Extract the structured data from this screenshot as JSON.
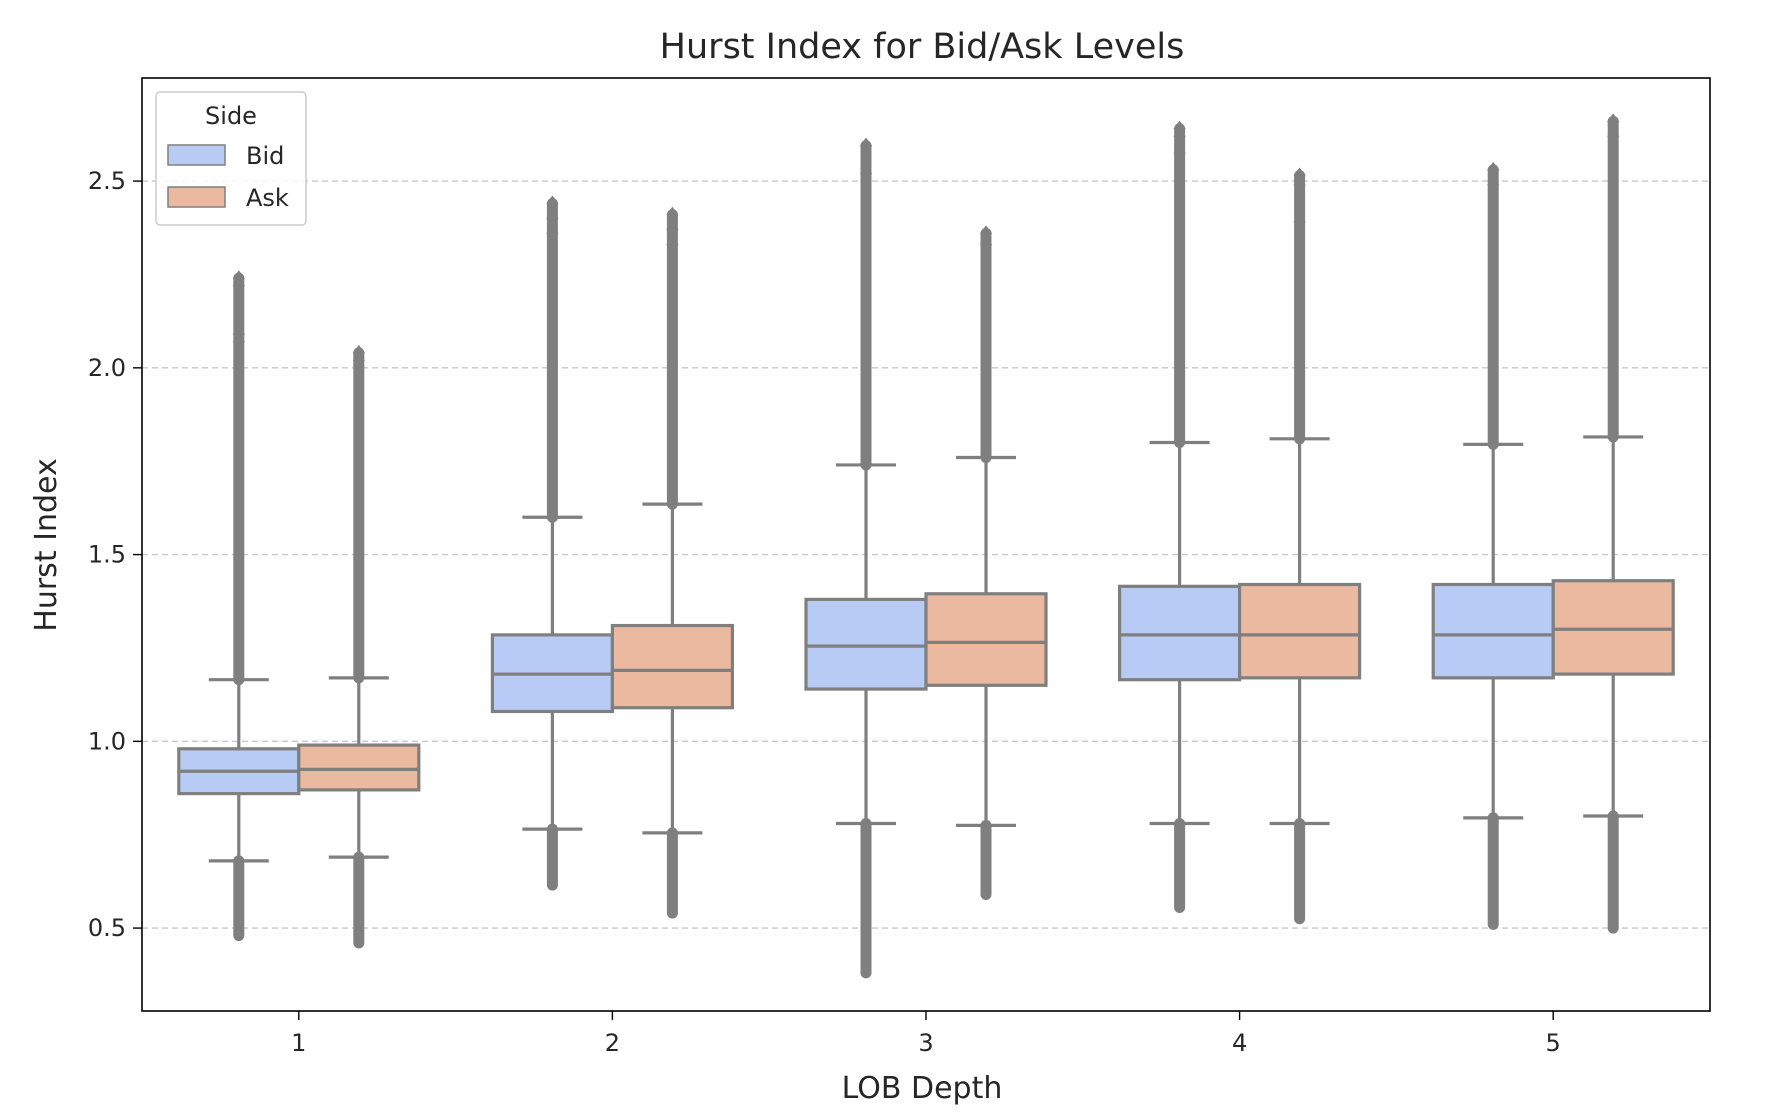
{
  "chart_data": {
    "type": "box",
    "title": "Hurst Index for Bid/Ask Levels",
    "xlabel": "LOB Depth",
    "ylabel": "Hurst Index",
    "categories": [
      "1",
      "2",
      "3",
      "4",
      "5"
    ],
    "ylim": [
      0.278,
      2.776
    ],
    "yticks": [
      0.5,
      1.0,
      1.5,
      2.0,
      2.5
    ],
    "ytick_labels": [
      "0.5",
      "1.0",
      "1.5",
      "2.0",
      "2.5"
    ],
    "grid": "horizontal dashed",
    "legend": {
      "title": "Side",
      "placement": "top-left",
      "entries": [
        "Bid",
        "Ask"
      ]
    },
    "series": [
      {
        "name": "Bid",
        "color": "#b8cbf4",
        "boxes": [
          {
            "category": "1",
            "whisker_low": 0.68,
            "q1": 0.86,
            "median": 0.92,
            "q3": 0.98,
            "whisker_high": 1.165,
            "outlier_low": 0.48,
            "outlier_high": 2.24,
            "outlier_points": [
              2.24,
              2.22,
              2.09,
              2.07
            ]
          },
          {
            "category": "2",
            "whisker_low": 0.765,
            "q1": 1.08,
            "median": 1.18,
            "q3": 1.285,
            "whisker_high": 1.6,
            "outlier_low": 0.615,
            "outlier_high": 2.44,
            "outlier_points": [
              2.44,
              2.4,
              2.36
            ]
          },
          {
            "category": "3",
            "whisker_low": 0.78,
            "q1": 1.14,
            "median": 1.255,
            "q3": 1.38,
            "whisker_high": 1.74,
            "outlier_low": 0.38,
            "outlier_high": 2.595,
            "outlier_points": [
              2.595,
              2.52
            ]
          },
          {
            "category": "4",
            "whisker_low": 0.78,
            "q1": 1.165,
            "median": 1.285,
            "q3": 1.415,
            "whisker_high": 1.8,
            "outlier_low": 0.555,
            "outlier_high": 2.64,
            "outlier_points": [
              2.64,
              2.62,
              2.575
            ]
          },
          {
            "category": "5",
            "whisker_low": 0.795,
            "q1": 1.17,
            "median": 1.285,
            "q3": 1.42,
            "whisker_high": 1.795,
            "outlier_low": 0.51,
            "outlier_high": 2.53,
            "outlier_points": [
              2.53,
              2.49
            ]
          }
        ]
      },
      {
        "name": "Ask",
        "color": "#eab9a0",
        "boxes": [
          {
            "category": "1",
            "whisker_low": 0.69,
            "q1": 0.87,
            "median": 0.925,
            "q3": 0.99,
            "whisker_high": 1.17,
            "outlier_low": 0.46,
            "outlier_high": 2.04,
            "outlier_points": [
              2.04,
              2.02
            ]
          },
          {
            "category": "2",
            "whisker_low": 0.755,
            "q1": 1.09,
            "median": 1.19,
            "q3": 1.31,
            "whisker_high": 1.635,
            "outlier_low": 0.54,
            "outlier_high": 2.41,
            "outlier_points": [
              2.41,
              2.37,
              2.33
            ]
          },
          {
            "category": "3",
            "whisker_low": 0.775,
            "q1": 1.15,
            "median": 1.265,
            "q3": 1.395,
            "whisker_high": 1.76,
            "outlier_low": 0.59,
            "outlier_high": 2.36,
            "outlier_points": [
              2.36,
              2.33
            ]
          },
          {
            "category": "4",
            "whisker_low": 0.78,
            "q1": 1.17,
            "median": 1.285,
            "q3": 1.42,
            "whisker_high": 1.81,
            "outlier_low": 0.525,
            "outlier_high": 2.515,
            "outlier_points": [
              2.515,
              2.49,
              2.39
            ]
          },
          {
            "category": "5",
            "whisker_low": 0.8,
            "q1": 1.18,
            "median": 1.3,
            "q3": 1.43,
            "whisker_high": 1.815,
            "outlier_low": 0.5,
            "outlier_high": 2.66,
            "outlier_points": [
              2.66,
              2.62
            ]
          }
        ]
      }
    ]
  }
}
